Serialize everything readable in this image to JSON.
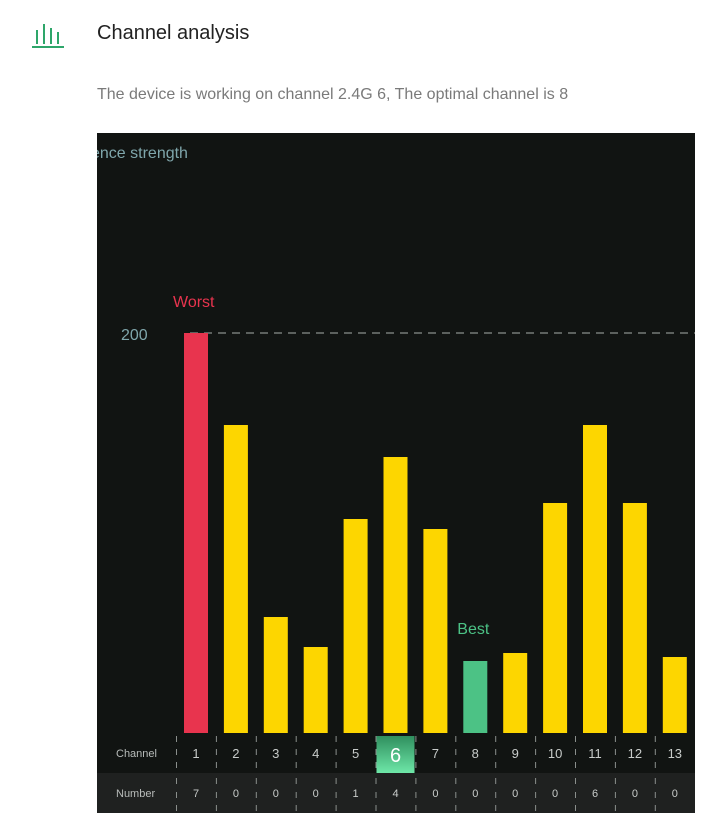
{
  "header": {
    "title": "Channel analysis",
    "status_text": "The device is working on channel 2.4G 6, The optimal channel is 8"
  },
  "chart_data": {
    "type": "bar",
    "ylabel": "ence strength",
    "reference_line": {
      "value": 200,
      "label": "200"
    },
    "categories": [
      "1",
      "2",
      "3",
      "4",
      "5",
      "6",
      "7",
      "8",
      "9",
      "10",
      "11",
      "12",
      "13"
    ],
    "values": [
      200,
      154,
      58,
      43,
      107,
      138,
      102,
      36,
      40,
      115,
      154,
      115,
      38
    ],
    "numbers": [
      7,
      0,
      0,
      0,
      1,
      4,
      0,
      0,
      0,
      0,
      6,
      0,
      0
    ],
    "current_channel": "6",
    "worst_channel": "1",
    "best_channel": "8",
    "worst_label": "Worst",
    "best_label": "Best",
    "row_labels": {
      "channel": "Channel",
      "number": "Number"
    },
    "colors": {
      "default": "#FDD600",
      "worst": "#E8344E",
      "best": "#4CC285",
      "reference_label": "#7FA6AB",
      "background": "#111412",
      "number_row_background": "#1F2120"
    }
  }
}
